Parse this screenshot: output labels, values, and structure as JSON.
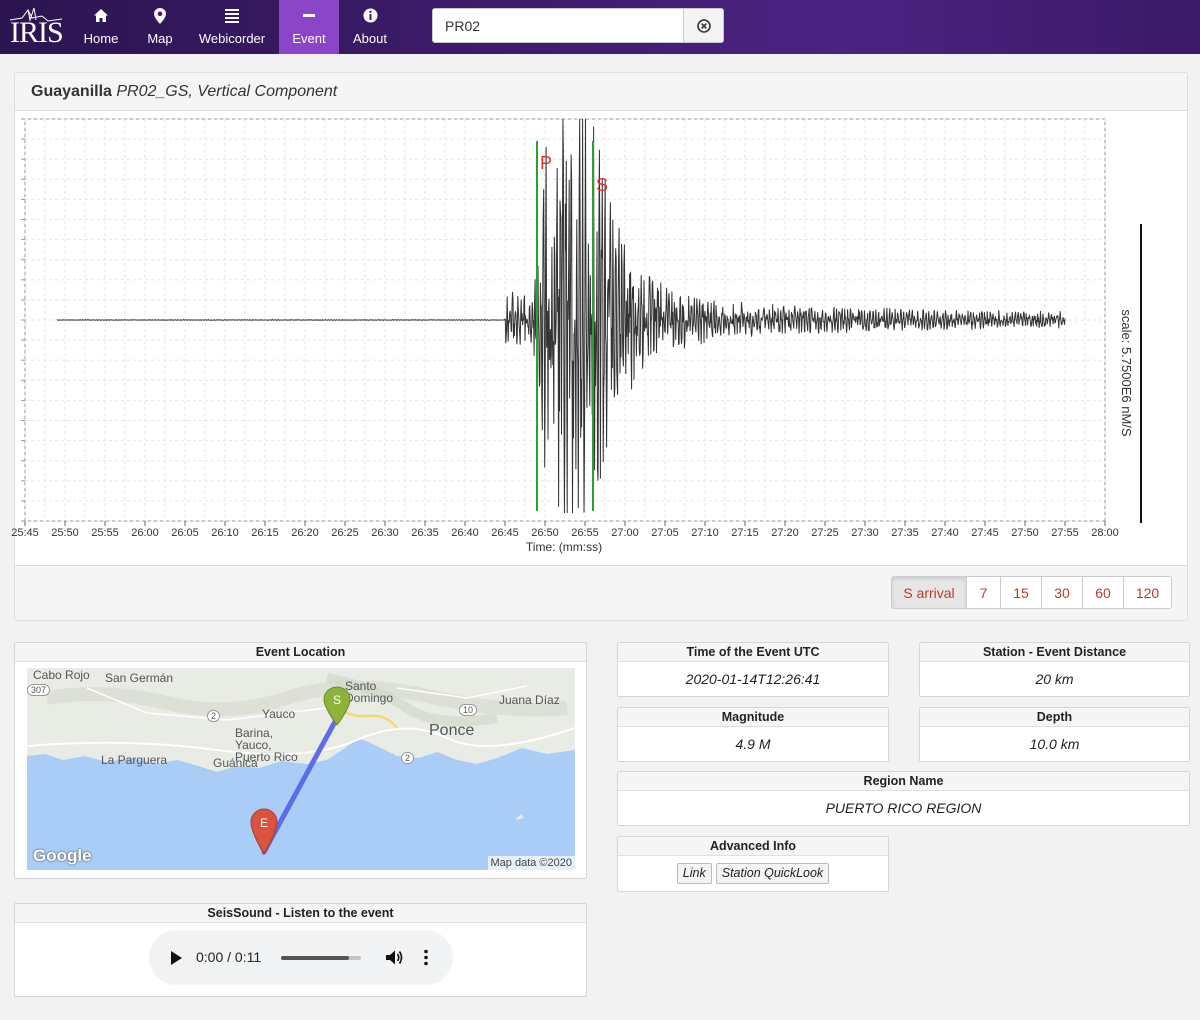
{
  "nav": {
    "logo_text": "IRIS",
    "items": [
      {
        "label": "Home",
        "icon": "home-icon"
      },
      {
        "label": "Map",
        "icon": "map-pin-icon"
      },
      {
        "label": "Webicorder",
        "icon": "menu-lines-icon"
      },
      {
        "label": "Event",
        "icon": "minus-icon",
        "active": true
      },
      {
        "label": "About",
        "icon": "info-icon"
      }
    ],
    "search": {
      "value": "PR02",
      "clear_icon": "clear-circle-icon"
    },
    "colors": {
      "nav_bg": "#3f1d6e",
      "active_tab": "#8a45c9"
    }
  },
  "seismogram": {
    "header": {
      "station_name": "Guayanilla",
      "component": "PR02_GS, Vertical Component"
    },
    "scale_label": "scale: 5.7500E6 nM/S",
    "time_buttons": [
      "S arrival",
      "7",
      "15",
      "30",
      "60",
      "120"
    ],
    "chart_data": {
      "type": "line",
      "xlabel": "Time: (mm:ss)",
      "ylabel": "",
      "x_ticks": [
        "25:45",
        "25:50",
        "25:55",
        "26:00",
        "26:05",
        "26:10",
        "26:15",
        "26:20",
        "26:25",
        "26:30",
        "26:35",
        "26:40",
        "26:45",
        "26:50",
        "26:55",
        "27:00",
        "27:05",
        "27:10",
        "27:15",
        "27:20",
        "27:25",
        "27:30",
        "27:35",
        "27:40",
        "27:45",
        "27:50",
        "27:55",
        "28:00"
      ],
      "xlim_seconds": [
        1545,
        1680
      ],
      "grid": true,
      "trace_start": "25:49",
      "trace_end": "27:55",
      "signal_onset": "26:45",
      "markers": [
        {
          "label": "P",
          "time": "26:49",
          "color": "#2ca02c"
        },
        {
          "label": "S",
          "time": "26:56",
          "color": "#2ca02c"
        }
      ],
      "marker_label_color": "#e03030",
      "trace_color": "#333333"
    }
  },
  "event_location": {
    "title": "Event Location",
    "place_labels": [
      "Cabo Rojo",
      "San Germán",
      "Yauco",
      "Barina, Yauco, Puerto Rico",
      "La Parguera",
      "Guánica",
      "Santo Domingo",
      "Juana Díaz",
      "Ponce"
    ],
    "road_labels": [
      "307",
      "2",
      "2",
      "10"
    ],
    "station_marker": "S",
    "event_marker": "E",
    "attribution": "Map data ©2020",
    "google_logo": "Google",
    "colors": {
      "sea": "#aacdf7",
      "land": "#e9ece6",
      "path": "#5b6ee8",
      "station": "#8db33a",
      "event": "#d9533f"
    }
  },
  "info_cards": {
    "time_utc": {
      "title": "Time of the Event UTC",
      "value": "2020-01-14T12:26:41"
    },
    "distance": {
      "title": "Station - Event Distance",
      "value": "20 km"
    },
    "magnitude": {
      "title": "Magnitude",
      "value": "4.9 M"
    },
    "depth": {
      "title": "Depth",
      "value": "10.0 km"
    },
    "region": {
      "title": "Region Name",
      "value": "PUERTO RICO REGION"
    },
    "advanced": {
      "title": "Advanced Info",
      "link_label": "Link",
      "quicklook_label": "Station QuickLook"
    }
  },
  "seissound": {
    "title": "SeisSound - Listen to the event",
    "time_display": "0:00 / 0:11",
    "progress": 0.85
  }
}
